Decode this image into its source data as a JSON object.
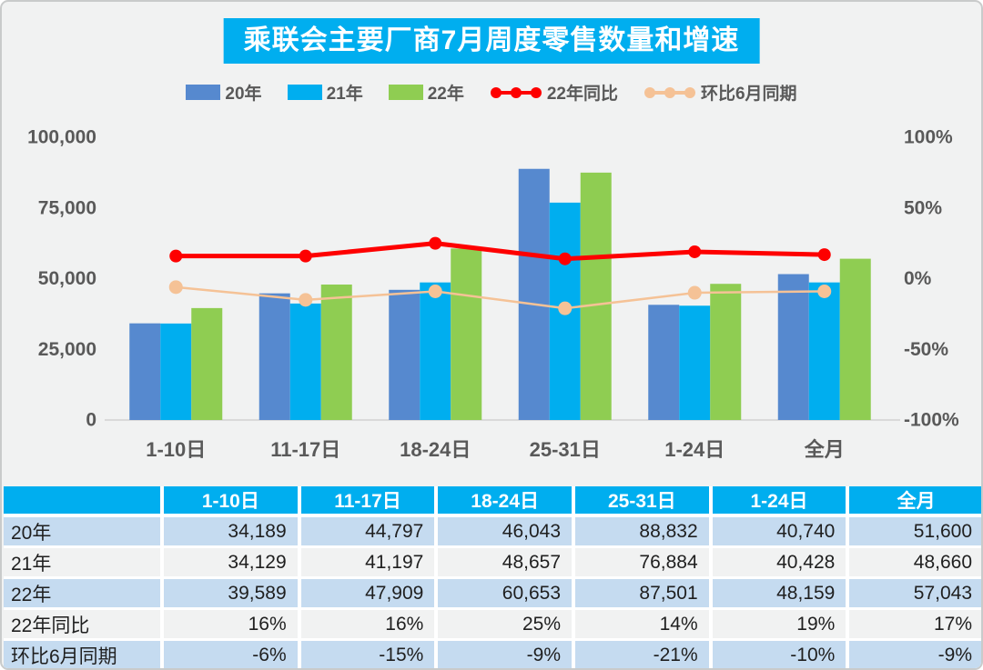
{
  "title": "乘联会主要厂商7月周度零售数量和增速",
  "colors": {
    "card_bg": "#F1F2F2",
    "title_bg": "#00AEEF",
    "bar_20": "#5689CF",
    "bar_21": "#00AEEF",
    "bar_22": "#8FCD52",
    "line_yoy": "#FE0000",
    "line_mom": "#F5C296",
    "axis_text": "#595959",
    "baseline": "#D9D9D9",
    "table_header_bg": "#00AEEF",
    "table_row_blue": "#C5DBF0",
    "table_row_gray": "#F1F2F2"
  },
  "legend": {
    "items": [
      {
        "label": "20年",
        "type": "swatch",
        "color_key": "bar_20"
      },
      {
        "label": "21年",
        "type": "swatch",
        "color_key": "bar_21"
      },
      {
        "label": "22年",
        "type": "swatch",
        "color_key": "bar_22"
      },
      {
        "label": "22年同比",
        "type": "line",
        "color_key": "line_yoy"
      },
      {
        "label": "环比6月同期",
        "type": "line",
        "color_key": "line_mom"
      }
    ]
  },
  "chart_data": {
    "type": "bar",
    "overlay_type": "line",
    "title": "乘联会主要厂商7月周度零售数量和增速",
    "categories": [
      "1-10日",
      "11-17日",
      "18-24日",
      "25-31日",
      "1-24日",
      "全月"
    ],
    "bar_series": [
      {
        "name": "20年",
        "color_key": "bar_20",
        "axis": "left",
        "values": [
          34189,
          44797,
          46043,
          88832,
          40740,
          51600
        ]
      },
      {
        "name": "21年",
        "color_key": "bar_21",
        "axis": "left",
        "values": [
          34129,
          41197,
          48657,
          76884,
          40428,
          48660
        ]
      },
      {
        "name": "22年",
        "color_key": "bar_22",
        "axis": "left",
        "values": [
          39589,
          47909,
          60653,
          87501,
          48159,
          57043
        ]
      }
    ],
    "line_series": [
      {
        "name": "22年同比",
        "color_key": "line_yoy",
        "axis": "right",
        "stroke_width": 5,
        "marker_r": 7,
        "values_pct": [
          16,
          16,
          25,
          14,
          19,
          17
        ]
      },
      {
        "name": "环比6月同期",
        "color_key": "line_mom",
        "axis": "right",
        "stroke_width": 2.5,
        "marker_r": 7.5,
        "values_pct": [
          -6,
          -15,
          -9,
          -21,
          -10,
          -9
        ]
      }
    ],
    "left_axis": {
      "min": 0,
      "max": 100000,
      "tick_values": [
        100000,
        75000,
        50000,
        25000,
        0
      ],
      "tick_labels": [
        "100,000",
        "75,000",
        "50,000",
        "25,000",
        "0"
      ]
    },
    "right_axis": {
      "min": -100,
      "max": 100,
      "tick_values": [
        100,
        50,
        0,
        -50,
        -100
      ],
      "tick_labels": [
        "100%",
        "50%",
        "0%",
        "-50%",
        "-100%"
      ]
    },
    "legend_position": "top",
    "grid": false
  },
  "table": {
    "header": [
      "",
      "1-10日",
      "11-17日",
      "18-24日",
      "25-31日",
      "1-24日",
      "全月"
    ],
    "rows": [
      {
        "label": "20年",
        "cells": [
          "34,189",
          "44,797",
          "46,043",
          "88,832",
          "40,740",
          "51,600"
        ]
      },
      {
        "label": "21年",
        "cells": [
          "34,129",
          "41,197",
          "48,657",
          "76,884",
          "40,428",
          "48,660"
        ]
      },
      {
        "label": "22年",
        "cells": [
          "39,589",
          "47,909",
          "60,653",
          "87,501",
          "48,159",
          "57,043"
        ]
      },
      {
        "label": "22年同比",
        "cells": [
          "16%",
          "16%",
          "25%",
          "14%",
          "19%",
          "17%"
        ]
      },
      {
        "label": "环比6月同期",
        "cells": [
          "-6%",
          "-15%",
          "-9%",
          "-21%",
          "-10%",
          "-9%"
        ]
      }
    ]
  }
}
